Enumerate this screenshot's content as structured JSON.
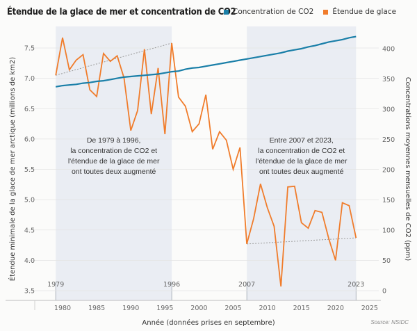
{
  "chart_data": {
    "type": "line",
    "title": "Étendue de la glace de mer et concentration de CO2",
    "xlabel": "Année (données prises en septembre)",
    "ylabel_left": "Étendue minimale de la glace de mer arctique (millions de km2)",
    "ylabel_right": "Concentrations moyennes mensuelles de CO2 (ppm)",
    "source": "Source: NSIDC",
    "xlim": [
      1975,
      2026
    ],
    "ylim_left": [
      3.4,
      7.8
    ],
    "ylim_right": [
      -8,
      432
    ],
    "x_ticks": [
      1980,
      1985,
      1990,
      1995,
      2000,
      2005,
      2010,
      2015,
      2020,
      2025
    ],
    "y_ticks_left": [
      "3.5",
      "4.0",
      "4.5",
      "5.0",
      "5.5",
      "6.0",
      "6.5",
      "7.0",
      "7.5"
    ],
    "y_ticks_right": [
      0,
      50,
      100,
      150,
      200,
      250,
      300,
      350,
      400
    ],
    "grid": true,
    "legend": {
      "position": "top-right",
      "entries": [
        {
          "label": "Concentration de CO2",
          "color": "#1a7fa8"
        },
        {
          "label": "Étendue de glace",
          "color": "#f07c2b"
        }
      ]
    },
    "x": [
      1979,
      1980,
      1981,
      1982,
      1983,
      1984,
      1985,
      1986,
      1987,
      1988,
      1989,
      1990,
      1991,
      1992,
      1993,
      1994,
      1995,
      1996,
      1997,
      1998,
      1999,
      2000,
      2001,
      2002,
      2003,
      2004,
      2005,
      2006,
      2007,
      2008,
      2009,
      2010,
      2011,
      2012,
      2013,
      2014,
      2015,
      2016,
      2017,
      2018,
      2019,
      2020,
      2021,
      2022,
      2023
    ],
    "series": [
      {
        "name": "Étendue de glace",
        "axis": "left",
        "color": "#f07c2b",
        "values": [
          7.05,
          7.67,
          7.14,
          7.3,
          7.39,
          6.81,
          6.7,
          7.41,
          7.28,
          7.37,
          7.01,
          6.14,
          6.47,
          7.48,
          6.41,
          7.17,
          6.08,
          7.58,
          6.69,
          6.54,
          6.12,
          6.25,
          6.73,
          5.83,
          6.12,
          5.98,
          5.5,
          5.86,
          4.27,
          4.69,
          5.26,
          4.87,
          4.56,
          3.57,
          5.21,
          5.22,
          4.62,
          4.53,
          4.82,
          4.79,
          4.36,
          4.0,
          4.95,
          4.9,
          4.37
        ]
      },
      {
        "name": "Concentration de CO2",
        "axis": "right",
        "color": "#1a7fa8",
        "values": [
          337,
          339,
          340,
          341,
          343,
          344,
          346,
          347,
          349,
          351,
          353,
          354,
          355,
          356,
          357,
          358,
          360,
          362,
          363,
          366,
          368,
          369,
          371,
          373,
          375,
          377,
          379,
          381,
          383,
          385,
          387,
          389,
          391,
          393,
          396,
          398,
          400,
          403,
          405,
          408,
          411,
          413,
          415,
          418,
          420
        ]
      }
    ],
    "trendlines": [
      {
        "from": [
          1979,
          7.05
        ],
        "to": [
          1996,
          7.58
        ],
        "style": "dotted"
      },
      {
        "from": [
          2007,
          4.27
        ],
        "to": [
          2023,
          4.37
        ],
        "style": "dotted"
      }
    ],
    "shaded_periods": [
      {
        "start": 1979,
        "end": 1996,
        "label_start": "1979",
        "label_end": "1996"
      },
      {
        "start": 2007,
        "end": 2023,
        "label_start": "2007",
        "label_end": "2023"
      }
    ],
    "annotations": [
      {
        "period": 0,
        "lines": [
          "De 1979 à 1996,",
          "la concentration de CO2 et",
          "l'étendue de la glace de mer",
          "ont toutes deux augmenté"
        ]
      },
      {
        "period": 1,
        "lines": [
          "Entre 2007 et 2023,",
          "la concentration de CO2 et",
          "l'étendue de la glace de mer",
          "ont toutes deux augmenté"
        ]
      }
    ]
  }
}
